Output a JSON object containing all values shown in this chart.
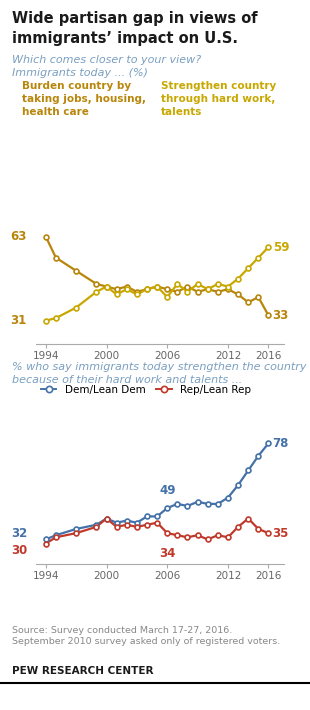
{
  "title_line1": "Wide partisan gap in views of",
  "title_line2": "immigrants’ impact on U.S.",
  "subtitle1": "Which comes closer to your view?",
  "subtitle2": "Immigrants today ... (%)",
  "chart1_label_burden": "Burden country by\ntaking jobs, housing,\nhealth care",
  "chart1_label_strengthen": "Strengthen country\nthrough hard work,\ntalents",
  "chart1_burden": {
    "years": [
      1994,
      1995,
      1997,
      1999,
      2000,
      2001,
      2002,
      2003,
      2004,
      2005,
      2006,
      2007,
      2008,
      2009,
      2010,
      2011,
      2012,
      2013,
      2014,
      2015,
      2016
    ],
    "values": [
      63,
      55,
      50,
      45,
      44,
      43,
      44,
      42,
      43,
      44,
      43,
      42,
      44,
      42,
      43,
      42,
      43,
      41,
      38,
      40,
      33
    ]
  },
  "chart1_strengthen": {
    "years": [
      1994,
      1995,
      1997,
      1999,
      2000,
      2001,
      2002,
      2003,
      2004,
      2005,
      2006,
      2007,
      2008,
      2009,
      2010,
      2011,
      2012,
      2013,
      2014,
      2015,
      2016
    ],
    "values": [
      31,
      32,
      36,
      42,
      44,
      41,
      43,
      41,
      43,
      44,
      40,
      45,
      42,
      45,
      43,
      45,
      44,
      47,
      51,
      55,
      59
    ]
  },
  "chart1_color_dark": "#b8860b",
  "chart1_color_light": "#c8a800",
  "chart2_subtitle_line1": "% who say immigrants today strengthen the country",
  "chart2_subtitle_line2": "because of their hard work and talents ...",
  "chart2_dem": {
    "years": [
      1994,
      1995,
      1997,
      1999,
      2000,
      2001,
      2002,
      2003,
      2004,
      2005,
      2006,
      2007,
      2008,
      2009,
      2010,
      2011,
      2012,
      2013,
      2014,
      2015,
      2016
    ],
    "values": [
      32,
      34,
      37,
      39,
      42,
      40,
      41,
      40,
      43,
      43,
      47,
      49,
      48,
      50,
      49,
      49,
      52,
      58,
      65,
      72,
      78
    ]
  },
  "chart2_rep": {
    "years": [
      1994,
      1995,
      1997,
      1999,
      2000,
      2001,
      2002,
      2003,
      2004,
      2005,
      2006,
      2007,
      2008,
      2009,
      2010,
      2011,
      2012,
      2013,
      2014,
      2015,
      2016
    ],
    "values": [
      30,
      33,
      35,
      38,
      42,
      38,
      39,
      38,
      39,
      40,
      35,
      34,
      33,
      34,
      32,
      34,
      33,
      38,
      42,
      37,
      35
    ]
  },
  "chart2_dem_label": "Dem/Lean Dem",
  "chart2_rep_label": "Rep/Lean Rep",
  "chart2_dem_color": "#4472a8",
  "chart2_rep_color": "#c0392b",
  "source_text_line1": "Source: Survey conducted March 17-27, 2016.",
  "source_text_line2": "September 2010 survey asked only of registered voters.",
  "pew_label": "PEW RESEARCH CENTER",
  "bg_color": "#ffffff",
  "title_color": "#1a1a1a",
  "subtitle_color": "#7a9fc0",
  "gold_label_color_dark": "#9a7000",
  "gold_label_color_light": "#c8a000",
  "axis_tick_color": "#666666",
  "source_color": "#888888"
}
